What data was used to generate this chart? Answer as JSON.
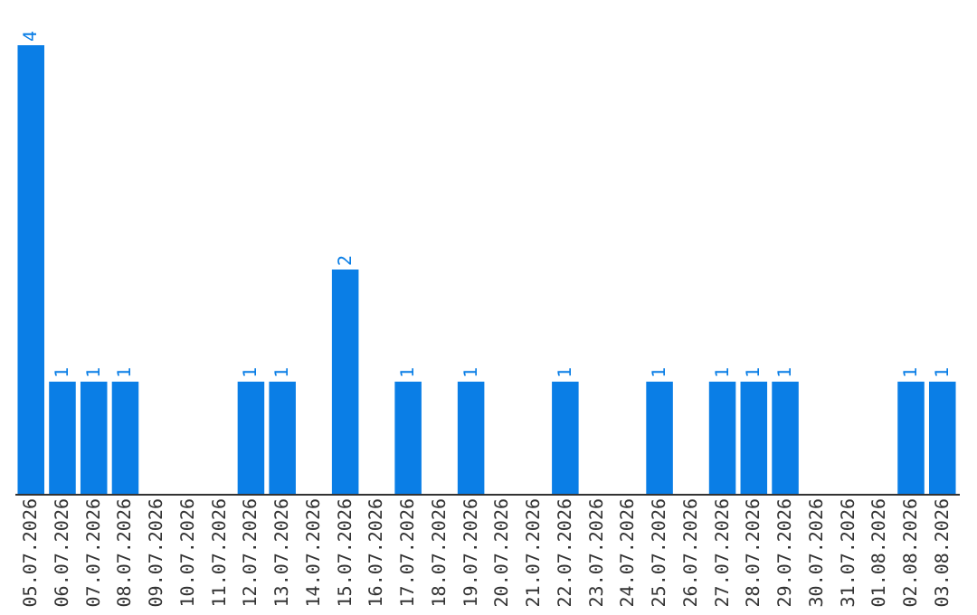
{
  "chart_data": {
    "type": "bar",
    "categories": [
      "05.07.2026",
      "06.07.2026",
      "07.07.2026",
      "08.07.2026",
      "09.07.2026",
      "10.07.2026",
      "11.07.2026",
      "12.07.2026",
      "13.07.2026",
      "14.07.2026",
      "15.07.2026",
      "16.07.2026",
      "17.07.2026",
      "18.07.2026",
      "19.07.2026",
      "20.07.2026",
      "21.07.2026",
      "22.07.2026",
      "23.07.2026",
      "24.07.2026",
      "25.07.2026",
      "26.07.2026",
      "27.07.2026",
      "28.07.2026",
      "29.07.2026",
      "30.07.2026",
      "31.07.2026",
      "01.08.2026",
      "02.08.2026",
      "03.08.2026"
    ],
    "values": [
      4,
      1,
      1,
      1,
      0,
      0,
      0,
      1,
      1,
      0,
      2,
      0,
      1,
      0,
      1,
      0,
      0,
      1,
      0,
      0,
      1,
      0,
      1,
      1,
      1,
      0,
      0,
      0,
      1,
      1
    ],
    "value_labels": [
      "4",
      "1",
      "1",
      "1",
      null,
      null,
      null,
      "1",
      "1",
      null,
      "2",
      null,
      "1",
      null,
      "1",
      null,
      null,
      "1",
      null,
      null,
      "1",
      null,
      "1",
      "1",
      "1",
      null,
      null,
      null,
      "1",
      "1"
    ],
    "color": "#0a7ee6",
    "grid": false
  }
}
